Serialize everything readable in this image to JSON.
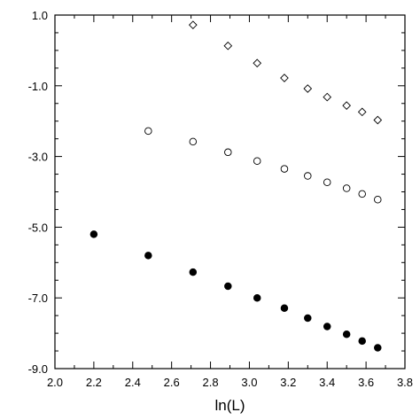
{
  "chart_data": {
    "type": "scatter",
    "title": "",
    "xlabel": "ln(L)",
    "ylabel": "",
    "xlim": [
      2.0,
      3.8
    ],
    "ylim": [
      -9.0,
      1.0
    ],
    "x_ticks": [
      "2.0",
      "2.2",
      "2.4",
      "2.6",
      "2.8",
      "3.0",
      "3.2",
      "3.4",
      "3.6",
      "3.8"
    ],
    "y_ticks": [
      "1.0",
      "-1.0",
      "-3.0",
      "-5.0",
      "-7.0",
      "-9.0"
    ],
    "x_tick_values": [
      2.0,
      2.2,
      2.4,
      2.6,
      2.8,
      3.0,
      3.2,
      3.4,
      3.6,
      3.8
    ],
    "y_tick_values": [
      1.0,
      -1.0,
      -3.0,
      -5.0,
      -7.0,
      -9.0
    ],
    "grid": false,
    "series": [
      {
        "marker": "diamond-open",
        "x": [
          2.71,
          2.89,
          3.04,
          3.18,
          3.3,
          3.4,
          3.5,
          3.58,
          3.66
        ],
        "y": [
          0.72,
          0.13,
          -0.36,
          -0.78,
          -1.08,
          -1.32,
          -1.56,
          -1.74,
          -1.97
        ]
      },
      {
        "marker": "circle-open",
        "x": [
          2.48,
          2.71,
          2.89,
          3.04,
          3.18,
          3.3,
          3.4,
          3.5,
          3.58,
          3.66
        ],
        "y": [
          -2.28,
          -2.58,
          -2.88,
          -3.13,
          -3.35,
          -3.55,
          -3.73,
          -3.9,
          -4.06,
          -4.22
        ]
      },
      {
        "marker": "circle-filled",
        "x": [
          2.2,
          2.48,
          2.71,
          2.89,
          3.04,
          3.18,
          3.3,
          3.4,
          3.5,
          3.58,
          3.66
        ],
        "y": [
          -5.2,
          -5.8,
          -6.27,
          -6.67,
          -7.0,
          -7.29,
          -7.57,
          -7.81,
          -8.03,
          -8.22,
          -8.41
        ]
      }
    ]
  }
}
